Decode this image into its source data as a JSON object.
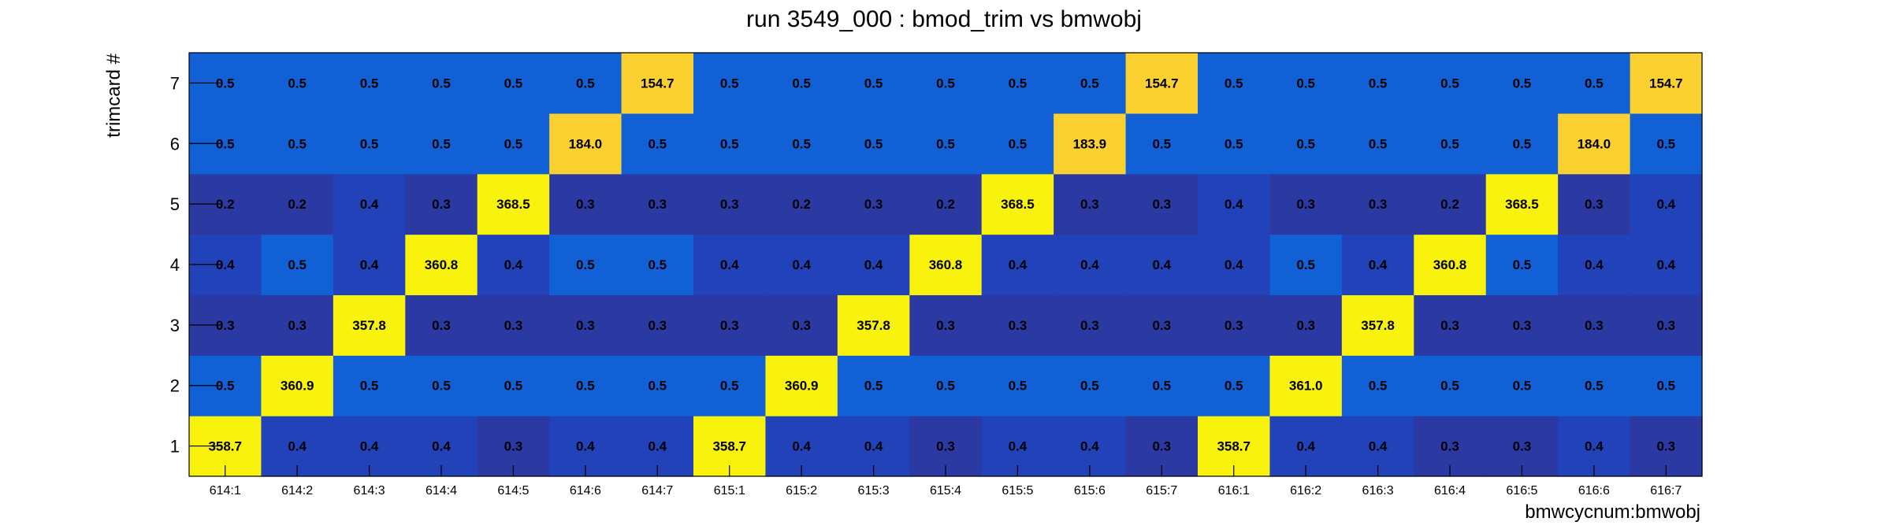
{
  "chart_data": {
    "type": "heatmap",
    "title": "run 3549_000 : bmod_trim vs bmwobj",
    "xlabel": "bmwcycnum:bmwobj",
    "ylabel": "trimcard #",
    "x_categories": [
      "614:1",
      "614:2",
      "614:3",
      "614:4",
      "614:5",
      "614:6",
      "614:7",
      "615:1",
      "615:2",
      "615:3",
      "615:4",
      "615:5",
      "615:6",
      "615:7",
      "616:1",
      "616:2",
      "616:3",
      "616:4",
      "616:5",
      "616:6",
      "616:7"
    ],
    "y_categories": [
      "1",
      "2",
      "3",
      "4",
      "5",
      "6",
      "7"
    ],
    "values": [
      [
        "358.7",
        "0.4",
        "0.4",
        "0.4",
        "0.3",
        "0.4",
        "0.4",
        "358.7",
        "0.4",
        "0.4",
        "0.3",
        "0.4",
        "0.4",
        "0.3",
        "358.7",
        "0.4",
        "0.4",
        "0.3",
        "0.3",
        "0.4",
        "0.3"
      ],
      [
        "0.5",
        "360.9",
        "0.5",
        "0.5",
        "0.5",
        "0.5",
        "0.5",
        "0.5",
        "360.9",
        "0.5",
        "0.5",
        "0.5",
        "0.5",
        "0.5",
        "0.5",
        "361.0",
        "0.5",
        "0.5",
        "0.5",
        "0.5",
        "0.5"
      ],
      [
        "0.3",
        "0.3",
        "357.8",
        "0.3",
        "0.3",
        "0.3",
        "0.3",
        "0.3",
        "0.3",
        "357.8",
        "0.3",
        "0.3",
        "0.3",
        "0.3",
        "0.3",
        "0.3",
        "357.8",
        "0.3",
        "0.3",
        "0.3",
        "0.3"
      ],
      [
        "0.4",
        "0.5",
        "0.4",
        "360.8",
        "0.4",
        "0.5",
        "0.5",
        "0.4",
        "0.4",
        "0.4",
        "360.8",
        "0.4",
        "0.4",
        "0.4",
        "0.4",
        "0.5",
        "0.4",
        "360.8",
        "0.5",
        "0.4",
        "0.4"
      ],
      [
        "0.2",
        "0.2",
        "0.4",
        "0.3",
        "368.5",
        "0.3",
        "0.3",
        "0.3",
        "0.2",
        "0.3",
        "0.2",
        "368.5",
        "0.3",
        "0.3",
        "0.4",
        "0.3",
        "0.3",
        "0.2",
        "368.5",
        "0.3",
        "0.4"
      ],
      [
        "0.5",
        "0.5",
        "0.5",
        "0.5",
        "0.5",
        "184.0",
        "0.5",
        "0.5",
        "0.5",
        "0.5",
        "0.5",
        "0.5",
        "183.9",
        "0.5",
        "0.5",
        "0.5",
        "0.5",
        "0.5",
        "0.5",
        "184.0",
        "0.5"
      ],
      [
        "0.5",
        "0.5",
        "0.5",
        "0.5",
        "0.5",
        "0.5",
        "154.7",
        "0.5",
        "0.5",
        "0.5",
        "0.5",
        "0.5",
        "0.5",
        "154.7",
        "0.5",
        "0.5",
        "0.5",
        "0.5",
        "0.5",
        "0.5",
        "154.7"
      ]
    ],
    "colors": {
      "low": "#2b3aa3",
      "mid_low": "#2142b8",
      "mid": "#1160d6",
      "high": "#f8f20c",
      "medium_high": "#fbd132",
      "frame": "#000000",
      "background": "#ffffff"
    },
    "grid": false,
    "legend": "none"
  }
}
